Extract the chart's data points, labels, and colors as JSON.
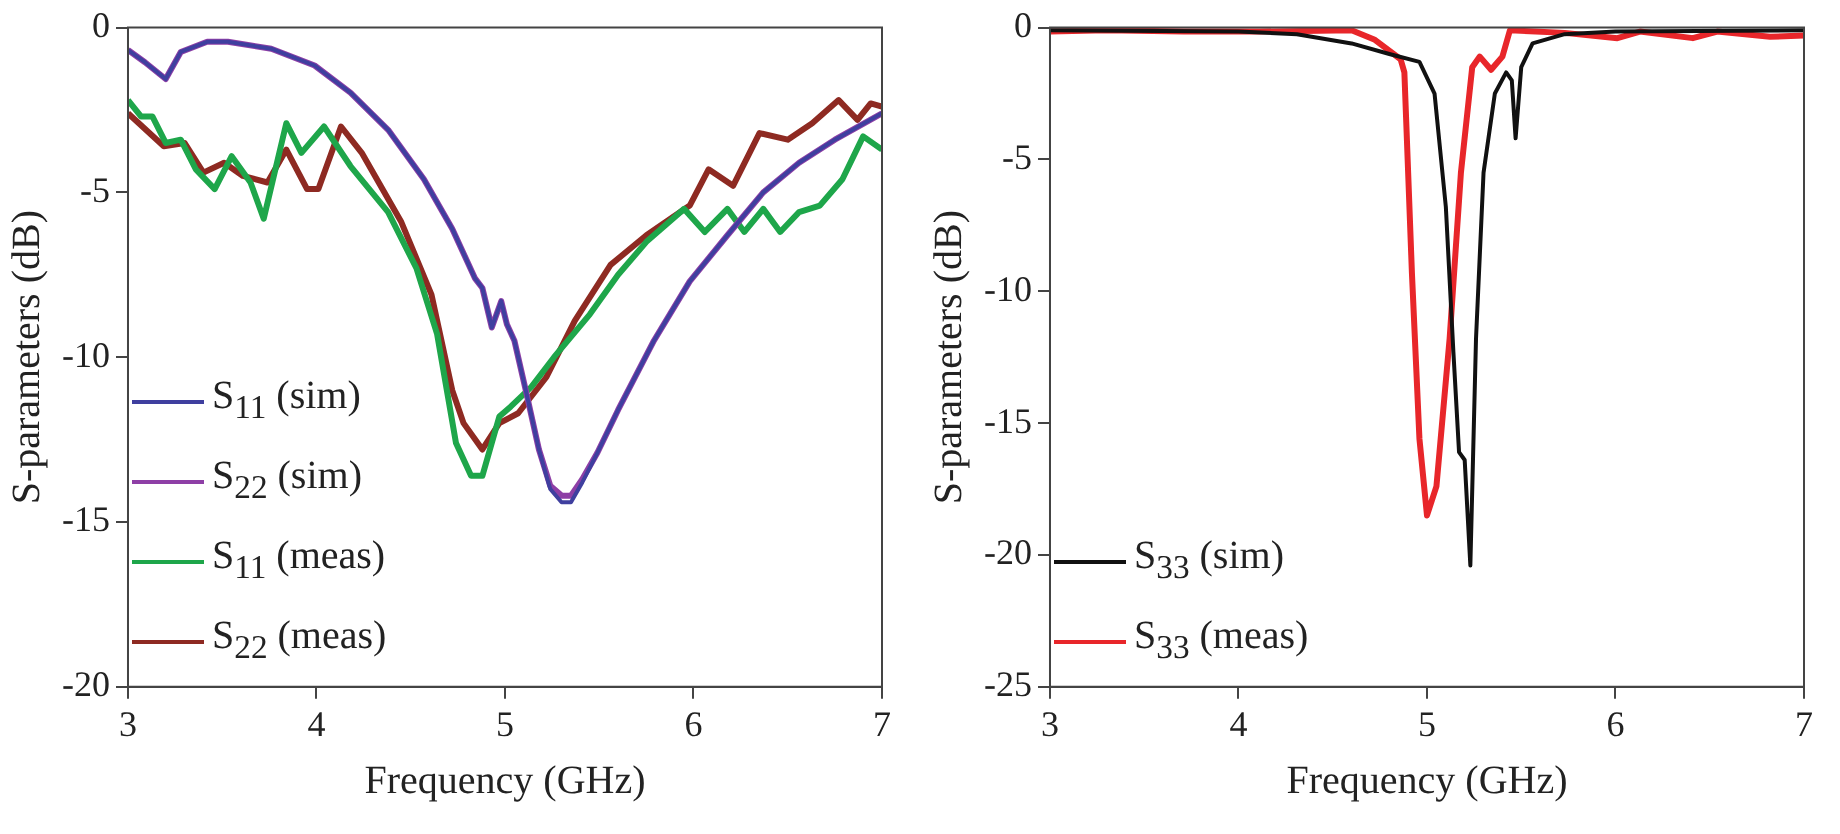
{
  "chart_data": [
    {
      "type": "line",
      "xlabel": "Frequency (GHz)",
      "ylabel": "S-parameters (dB)",
      "xlim": [
        3,
        7
      ],
      "xticks": [
        3,
        4,
        5,
        6,
        7
      ],
      "ylim": [
        -20,
        0
      ],
      "yticks": [
        -20,
        -15,
        -10,
        -5,
        0
      ],
      "grid": false,
      "legend": "bottom left",
      "marker": "none",
      "line_style": "solid",
      "series": [
        {
          "name": "S$_{11}$ (sim)",
          "color": "#3f3f9f",
          "x": [
            3.0,
            3.09,
            3.2,
            3.28,
            3.42,
            3.53,
            3.76,
            3.99,
            4.18,
            4.38,
            4.57,
            4.72,
            4.84,
            4.88,
            4.93,
            4.98,
            5.01,
            5.05,
            5.11,
            5.18,
            5.24,
            5.3,
            5.35,
            5.41,
            5.49,
            5.6,
            5.79,
            5.98,
            6.18,
            6.37,
            6.56,
            6.75,
            7.0
          ],
          "values": [
            -0.68,
            -1.05,
            -1.56,
            -0.74,
            -0.43,
            -0.43,
            -0.64,
            -1.15,
            -1.97,
            -3.1,
            -4.6,
            -6.1,
            -7.6,
            -7.9,
            -9.1,
            -8.3,
            -9.0,
            -9.5,
            -11.0,
            -12.8,
            -14.0,
            -14.4,
            -14.4,
            -13.8,
            -12.9,
            -11.6,
            -9.5,
            -7.7,
            -6.3,
            -5.0,
            -4.1,
            -3.4,
            -2.6
          ]
        },
        {
          "name": "S$_{22}$ (sim)",
          "color": "#8e3fa6",
          "x": [
            3.0,
            3.09,
            3.2,
            3.28,
            3.42,
            3.53,
            3.76,
            3.99,
            4.18,
            4.38,
            4.57,
            4.72,
            4.84,
            4.88,
            4.93,
            4.98,
            5.01,
            5.05,
            5.11,
            5.18,
            5.24,
            5.3,
            5.35,
            5.41,
            5.49,
            5.6,
            5.79,
            5.98,
            6.18,
            6.37,
            6.56,
            6.75,
            7.0
          ],
          "values": [
            -0.68,
            -1.05,
            -1.56,
            -0.74,
            -0.43,
            -0.43,
            -0.64,
            -1.15,
            -1.97,
            -3.1,
            -4.6,
            -6.1,
            -7.6,
            -7.9,
            -9.1,
            -8.3,
            -9.0,
            -9.5,
            -11.0,
            -12.8,
            -13.9,
            -14.2,
            -14.2,
            -13.7,
            -12.9,
            -11.6,
            -9.5,
            -7.7,
            -6.3,
            -5.0,
            -4.1,
            -3.4,
            -2.6
          ]
        },
        {
          "name": "S$_{11}$ (meas)",
          "color": "#1ea64a",
          "x": [
            3.0,
            3.07,
            3.13,
            3.2,
            3.28,
            3.36,
            3.46,
            3.55,
            3.65,
            3.72,
            3.84,
            3.92,
            4.04,
            4.18,
            4.38,
            4.53,
            4.64,
            4.74,
            4.82,
            4.88,
            4.97,
            5.03,
            5.14,
            5.26,
            5.45,
            5.6,
            5.75,
            5.95,
            6.06,
            6.18,
            6.27,
            6.37,
            6.46,
            6.56,
            6.67,
            6.79,
            6.9,
            7.0
          ],
          "values": [
            -2.2,
            -2.7,
            -2.7,
            -3.5,
            -3.4,
            -4.3,
            -4.9,
            -3.9,
            -4.7,
            -5.8,
            -2.9,
            -3.8,
            -3.0,
            -4.2,
            -5.6,
            -7.3,
            -9.3,
            -12.6,
            -13.6,
            -13.6,
            -11.8,
            -11.5,
            -10.9,
            -10.0,
            -8.7,
            -7.5,
            -6.5,
            -5.5,
            -6.2,
            -5.5,
            -6.2,
            -5.5,
            -6.2,
            -5.6,
            -5.4,
            -4.6,
            -3.3,
            -3.7
          ]
        },
        {
          "name": "S$_{22}$ (meas)",
          "color": "#8e2a22",
          "x": [
            3.0,
            3.19,
            3.3,
            3.4,
            3.51,
            3.61,
            3.74,
            3.84,
            3.95,
            4.01,
            4.13,
            4.24,
            4.45,
            4.61,
            4.72,
            4.78,
            4.88,
            4.97,
            5.07,
            5.22,
            5.37,
            5.56,
            5.75,
            5.98,
            6.08,
            6.21,
            6.35,
            6.5,
            6.63,
            6.77,
            6.87,
            6.94,
            7.0
          ],
          "values": [
            -2.6,
            -3.6,
            -3.5,
            -4.4,
            -4.1,
            -4.5,
            -4.7,
            -3.7,
            -4.9,
            -4.9,
            -3.0,
            -3.8,
            -5.9,
            -8.1,
            -11.0,
            -12.0,
            -12.8,
            -12.0,
            -11.7,
            -10.6,
            -8.9,
            -7.2,
            -6.3,
            -5.4,
            -4.3,
            -4.8,
            -3.2,
            -3.4,
            -2.9,
            -2.2,
            -2.8,
            -2.3,
            -2.4
          ]
        }
      ]
    },
    {
      "type": "line",
      "xlabel": "Frequency (GHz)",
      "ylabel": "S-parameters (dB)",
      "xlim": [
        3,
        7
      ],
      "xticks": [
        3,
        4,
        5,
        6,
        7
      ],
      "ylim": [
        -25,
        0
      ],
      "yticks": [
        -25,
        -20,
        -15,
        -10,
        -5,
        0
      ],
      "grid": false,
      "legend": "bottom left",
      "marker": "none",
      "line_style": "solid",
      "series": [
        {
          "name": "S$_{33}$ (sim)",
          "color": "#111111",
          "x": [
            3.0,
            4.0,
            4.31,
            4.6,
            4.8,
            4.96,
            5.04,
            5.1,
            5.14,
            5.17,
            5.2,
            5.23,
            5.26,
            5.3,
            5.36,
            5.42,
            5.45,
            5.47,
            5.5,
            5.56,
            5.73,
            6.0,
            7.0
          ],
          "values": [
            -0.1,
            -0.15,
            -0.25,
            -0.6,
            -1.0,
            -1.3,
            -2.5,
            -6.8,
            -12.3,
            -16.1,
            -16.4,
            -20.4,
            -11.8,
            -5.5,
            -2.5,
            -1.7,
            -2.0,
            -4.2,
            -1.5,
            -0.6,
            -0.25,
            -0.15,
            -0.1
          ]
        },
        {
          "name": "S$_{33}$ (meas)",
          "color": "#e8262a",
          "x": [
            3.0,
            3.3,
            3.71,
            4.11,
            4.6,
            4.72,
            4.86,
            4.88,
            4.92,
            4.96,
            5.0,
            5.05,
            5.12,
            5.18,
            5.24,
            5.28,
            5.34,
            5.4,
            5.44,
            5.73,
            6.01,
            6.13,
            6.41,
            6.54,
            6.82,
            7.0
          ],
          "values": [
            -0.15,
            -0.1,
            -0.15,
            -0.15,
            -0.1,
            -0.45,
            -1.2,
            -1.7,
            -9.3,
            -15.6,
            -18.5,
            -17.4,
            -11.8,
            -5.5,
            -1.5,
            -1.1,
            -1.6,
            -1.1,
            -0.1,
            -0.2,
            -0.4,
            -0.15,
            -0.4,
            -0.15,
            -0.35,
            -0.3
          ]
        }
      ]
    }
  ]
}
